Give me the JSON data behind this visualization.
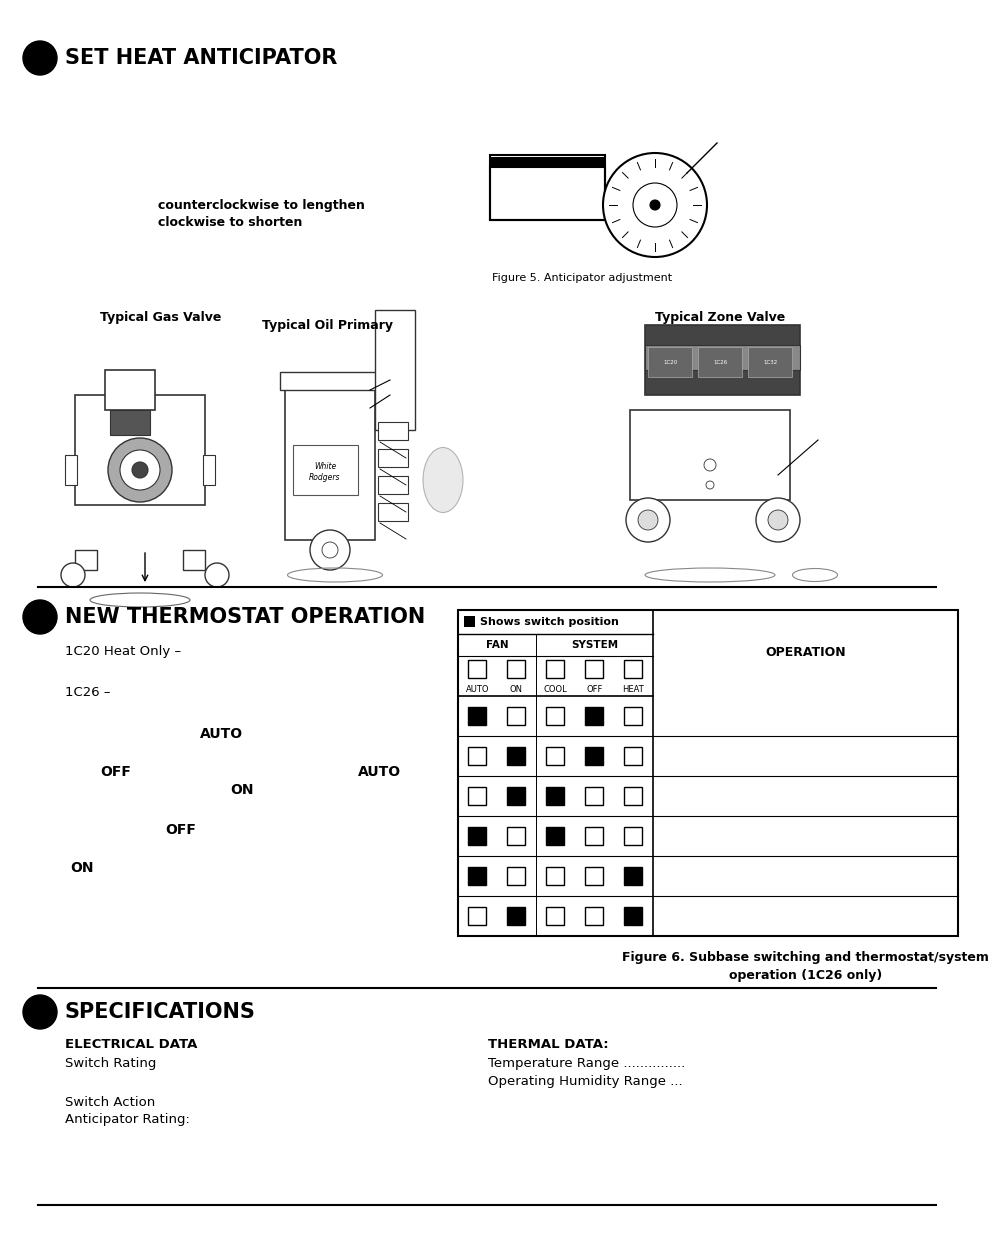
{
  "bg_color": "#ffffff",
  "section1_title": "SET HEAT ANTICIPATOR",
  "anticipator_text1": "counterclockwise to lengthen",
  "anticipator_text2": "clockwise to shorten",
  "fig_caption1": "Figure 5. Anticipator adjustment",
  "device_labels": [
    "Typical Gas Valve",
    "Typical Oil Primary",
    "Typical Zone Valve"
  ],
  "section2_title": "NEW THERMOSTAT OPERATION",
  "label_1c20": "1C20 Heat Only –",
  "label_1c26": "1C26 –",
  "fig_caption2_line1": "Figure 6. Subbase switching and thermostat/system",
  "fig_caption2_line2": "operation (1C26 only)",
  "shows_switch": "Shows switch position",
  "table_header_fan": "FAN",
  "table_header_system": "SYSTEM",
  "col_labels": [
    "AUTO",
    "ON",
    "COOL",
    "OFF",
    "HEAT"
  ],
  "table_header_operation": "OPERATION",
  "table_rows": [
    [
      true,
      false,
      false,
      true,
      false
    ],
    [
      false,
      true,
      false,
      true,
      false
    ],
    [
      false,
      true,
      true,
      false,
      false
    ],
    [
      true,
      false,
      true,
      false,
      false
    ],
    [
      true,
      false,
      false,
      false,
      true
    ],
    [
      false,
      true,
      false,
      false,
      true
    ]
  ],
  "section3_title": "SPECIFICATIONS",
  "elec_data_title": "ELECTRICAL DATA",
  "switch_rating": "Switch Rating",
  "switch_action": "Switch Action",
  "anticipator_rating": "Anticipator Rating:",
  "thermal_data_title": "THERMAL DATA:",
  "temp_range": "Temperature Range ...............",
  "humidity_range": "Operating Humidity Range ..."
}
